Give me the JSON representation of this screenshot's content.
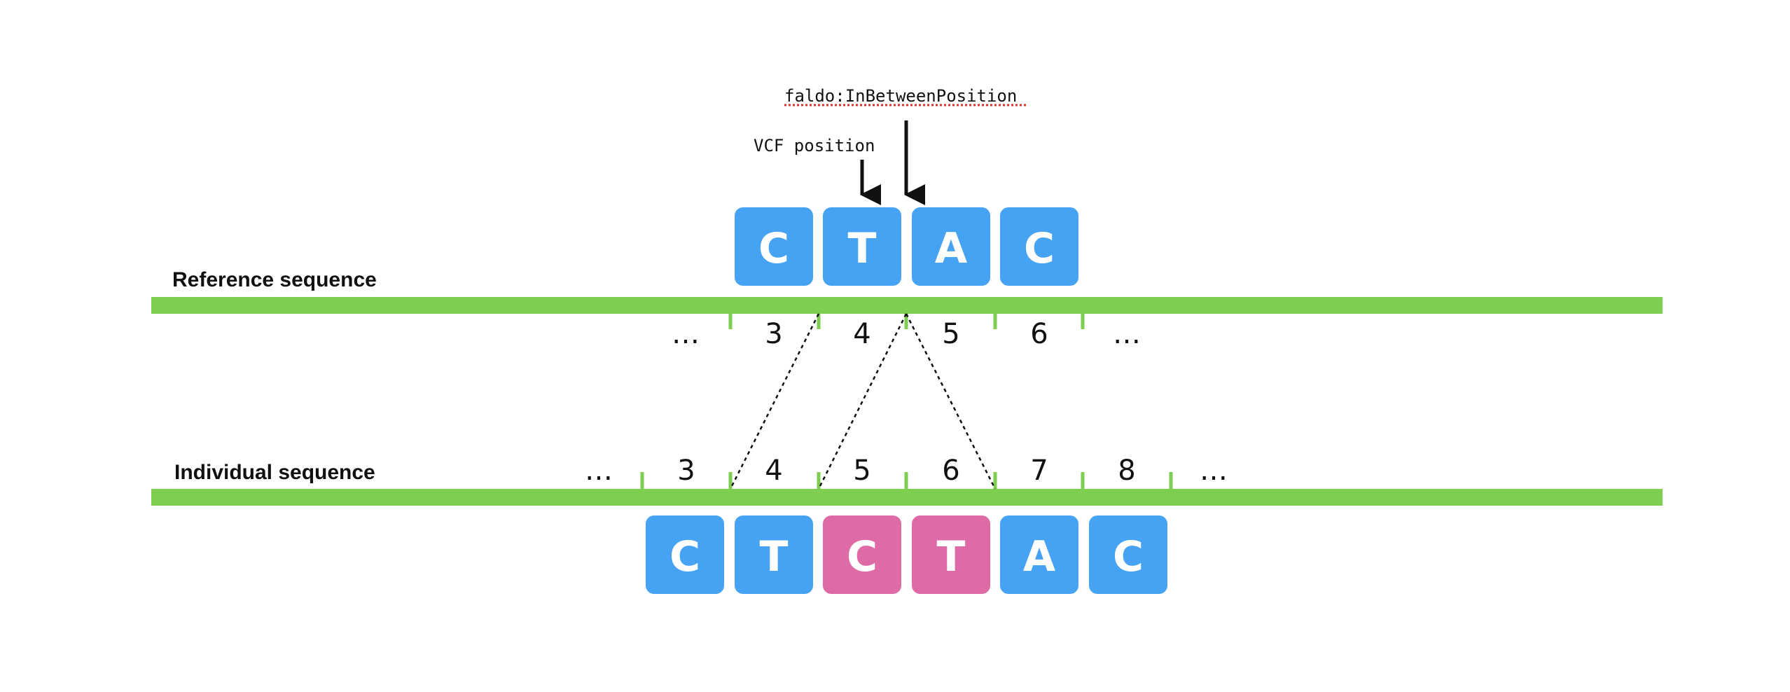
{
  "colors": {
    "reference_base": "#46a3f4",
    "inserted_base": "#df6ba6",
    "sequence_line": "#7ece52",
    "text": "#111111",
    "base_letter": "#ffffff"
  },
  "annotations": {
    "faldo_label": "faldo:InBetweenPosition",
    "vcf_label": "VCF position"
  },
  "reference": {
    "label": "Reference sequence",
    "bases": [
      {
        "letter": "C",
        "kind": "reference"
      },
      {
        "letter": "T",
        "kind": "reference"
      },
      {
        "letter": "A",
        "kind": "reference"
      },
      {
        "letter": "C",
        "kind": "reference"
      }
    ],
    "positions": [
      "…",
      "3",
      "4",
      "5",
      "6",
      "…"
    ]
  },
  "individual": {
    "label": "Individual sequence",
    "bases": [
      {
        "letter": "C",
        "kind": "reference"
      },
      {
        "letter": "T",
        "kind": "reference"
      },
      {
        "letter": "C",
        "kind": "inserted"
      },
      {
        "letter": "T",
        "kind": "inserted"
      },
      {
        "letter": "A",
        "kind": "reference"
      },
      {
        "letter": "C",
        "kind": "reference"
      }
    ],
    "positions": [
      "…",
      "3",
      "4",
      "5",
      "6",
      "7",
      "8",
      "…"
    ]
  }
}
